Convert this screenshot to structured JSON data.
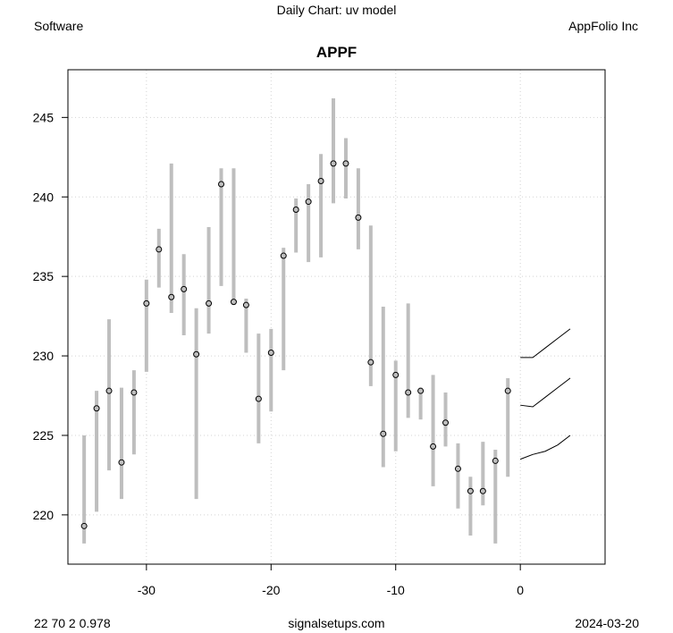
{
  "header": {
    "title": "Daily Chart: uv model",
    "sector": "Software",
    "company": "AppFolio Inc"
  },
  "footer": {
    "left": "22 70 2 0.978",
    "center": "signalsetups.com",
    "right": "2024-03-20"
  },
  "chart_data": {
    "type": "range_bar_with_forecast",
    "title": "APPF",
    "xlabel": "",
    "ylabel": "",
    "xlim": [
      -36.3,
      6.8
    ],
    "ylim": [
      216.9,
      248.0
    ],
    "x_ticks": [
      -30,
      -20,
      -10,
      0
    ],
    "y_ticks": [
      220,
      225,
      230,
      235,
      240,
      245
    ],
    "grid": true,
    "colors": {
      "range_bar": "#bebebe",
      "close_marker": "#000000",
      "forecast_line": "#000000",
      "grid": "#d3d3d3"
    },
    "bars": [
      {
        "x": -35,
        "low": 218.2,
        "high": 225.0,
        "close": 219.3
      },
      {
        "x": -34,
        "low": 220.2,
        "high": 227.8,
        "close": 226.7
      },
      {
        "x": -33,
        "low": 222.8,
        "high": 232.3,
        "close": 227.8
      },
      {
        "x": -32,
        "low": 221.0,
        "high": 228.0,
        "close": 223.3
      },
      {
        "x": -31,
        "low": 223.8,
        "high": 229.1,
        "close": 227.7
      },
      {
        "x": -30,
        "low": 229.0,
        "high": 234.8,
        "close": 233.3
      },
      {
        "x": -29,
        "low": 234.3,
        "high": 238.0,
        "close": 236.7
      },
      {
        "x": -28,
        "low": 232.7,
        "high": 242.1,
        "close": 233.7
      },
      {
        "x": -27,
        "low": 231.3,
        "high": 236.4,
        "close": 234.2
      },
      {
        "x": -26,
        "low": 221.0,
        "high": 233.0,
        "close": 230.1
      },
      {
        "x": -25,
        "low": 231.4,
        "high": 238.1,
        "close": 233.3
      },
      {
        "x": -24,
        "low": 234.4,
        "high": 241.8,
        "close": 240.8
      },
      {
        "x": -23,
        "low": 233.2,
        "high": 241.8,
        "close": 233.4
      },
      {
        "x": -22,
        "low": 230.2,
        "high": 233.6,
        "close": 233.2
      },
      {
        "x": -21,
        "low": 224.5,
        "high": 231.4,
        "close": 227.3
      },
      {
        "x": -20,
        "low": 226.5,
        "high": 231.7,
        "close": 230.2
      },
      {
        "x": -19,
        "low": 229.1,
        "high": 236.8,
        "close": 236.3
      },
      {
        "x": -18,
        "low": 236.5,
        "high": 239.9,
        "close": 239.2
      },
      {
        "x": -17,
        "low": 235.9,
        "high": 240.8,
        "close": 239.7
      },
      {
        "x": -16,
        "low": 236.2,
        "high": 242.7,
        "close": 241.0
      },
      {
        "x": -15,
        "low": 239.6,
        "high": 246.2,
        "close": 242.1
      },
      {
        "x": -14,
        "low": 239.9,
        "high": 243.7,
        "close": 242.1
      },
      {
        "x": -13,
        "low": 236.7,
        "high": 241.8,
        "close": 238.7
      },
      {
        "x": -12,
        "low": 228.1,
        "high": 238.2,
        "close": 229.6
      },
      {
        "x": -11,
        "low": 223.0,
        "high": 233.1,
        "close": 225.1
      },
      {
        "x": -10,
        "low": 224.0,
        "high": 229.7,
        "close": 228.8
      },
      {
        "x": -9,
        "low": 226.1,
        "high": 233.3,
        "close": 227.7
      },
      {
        "x": -8,
        "low": 226.0,
        "high": 228.0,
        "close": 227.8
      },
      {
        "x": -7,
        "low": 221.8,
        "high": 228.8,
        "close": 224.3
      },
      {
        "x": -6,
        "low": 224.3,
        "high": 227.7,
        "close": 225.8
      },
      {
        "x": -5,
        "low": 220.4,
        "high": 224.5,
        "close": 222.9
      },
      {
        "x": -4,
        "low": 218.7,
        "high": 222.4,
        "close": 221.5
      },
      {
        "x": -3,
        "low": 220.6,
        "high": 224.6,
        "close": 221.5
      },
      {
        "x": -2,
        "low": 218.2,
        "high": 224.1,
        "close": 223.4
      },
      {
        "x": -1,
        "low": 222.4,
        "high": 228.6,
        "close": 227.8
      }
    ],
    "forecast_lines": [
      {
        "x": [
          0,
          1,
          2,
          3,
          4
        ],
        "y": [
          229.9,
          229.9,
          230.5,
          231.1,
          231.7
        ]
      },
      {
        "x": [
          0,
          1,
          2,
          3,
          4
        ],
        "y": [
          226.9,
          226.8,
          227.4,
          228.0,
          228.6
        ]
      },
      {
        "x": [
          0,
          1,
          2,
          3,
          4
        ],
        "y": [
          223.5,
          223.8,
          224.0,
          224.4,
          225.0
        ]
      }
    ]
  }
}
